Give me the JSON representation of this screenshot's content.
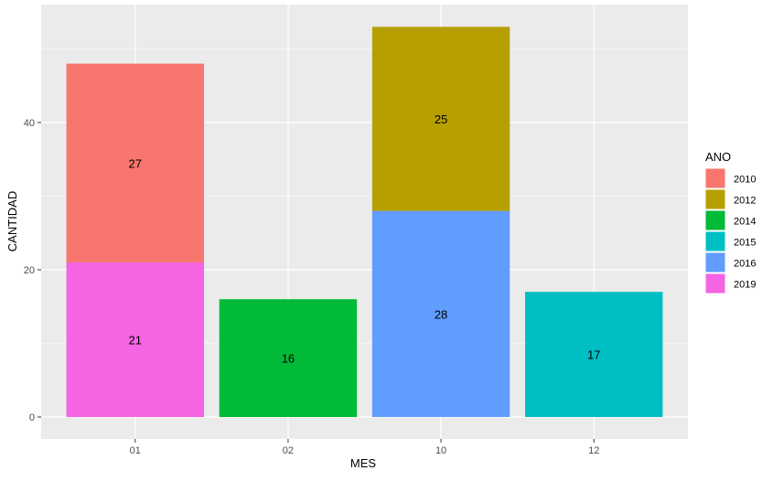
{
  "chart_data": {
    "type": "bar",
    "stacked": true,
    "categories": [
      "01",
      "02",
      "10",
      "12"
    ],
    "xlabel": "MES",
    "ylabel": "CANTIDAD",
    "ylim": [
      0,
      55
    ],
    "yticks": [
      0,
      20,
      40
    ],
    "grid": true,
    "legend": {
      "title": "ANO",
      "placement": "right"
    },
    "series": [
      {
        "name": "2010",
        "color": "#F8766D",
        "values": [
          27,
          0,
          0,
          0
        ]
      },
      {
        "name": "2012",
        "color": "#B79F00",
        "values": [
          0,
          0,
          25,
          0
        ]
      },
      {
        "name": "2014",
        "color": "#00BA38",
        "values": [
          0,
          16,
          0,
          0
        ]
      },
      {
        "name": "2015",
        "color": "#00BFC4",
        "values": [
          0,
          0,
          0,
          17
        ]
      },
      {
        "name": "2016",
        "color": "#619CFF",
        "values": [
          0,
          0,
          28,
          0
        ]
      },
      {
        "name": "2019",
        "color": "#F564E3",
        "values": [
          21,
          0,
          0,
          0
        ]
      }
    ]
  },
  "colors": {
    "panel_background": "#EBEBEB",
    "grid_major": "#FFFFFF",
    "axis_text": "#4D4D4D"
  }
}
